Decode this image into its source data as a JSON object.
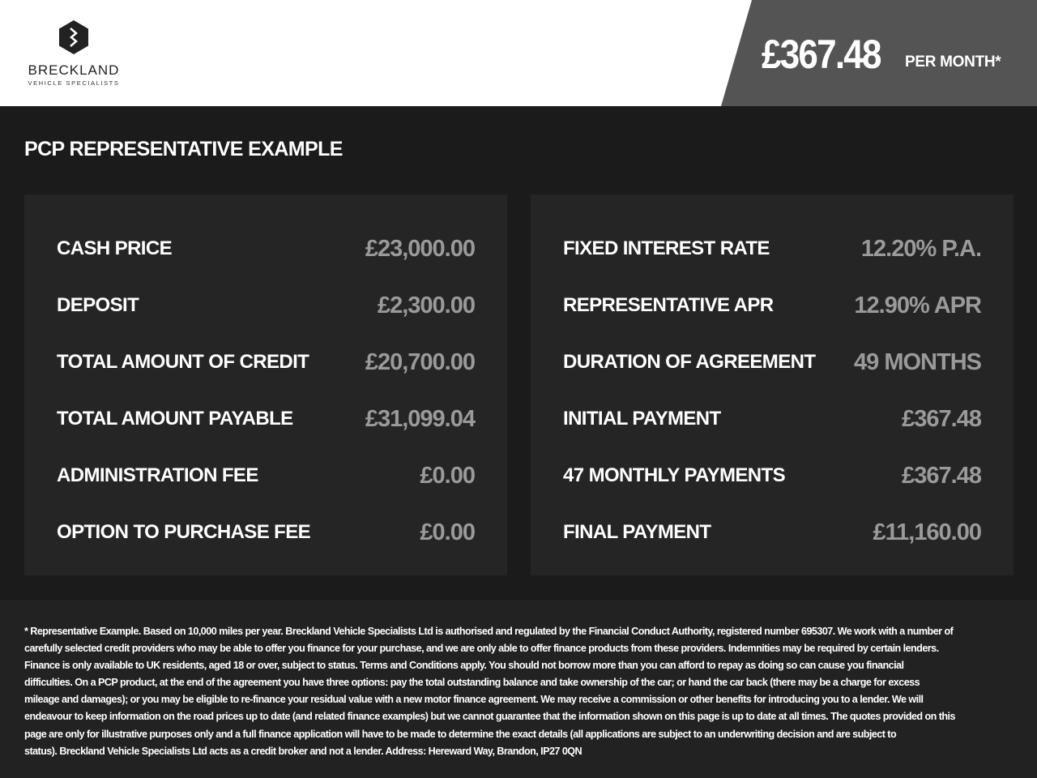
{
  "header": {
    "brand_name": "BRECKLAND",
    "brand_sub": "VEHICLE SPECIALISTS",
    "monthly_price": "£367.48",
    "per_month": "PER MONTH*"
  },
  "colors": {
    "header_band": "#545454",
    "panel": "#252525",
    "value_text": "#9a9a9a"
  },
  "section_title": "PCP REPRESENTATIVE EXAMPLE",
  "left_panel": [
    {
      "label": "CASH PRICE",
      "value": "£23,000.00"
    },
    {
      "label": "DEPOSIT",
      "value": "£2,300.00"
    },
    {
      "label": "TOTAL AMOUNT OF CREDIT",
      "value": "£20,700.00"
    },
    {
      "label": "TOTAL AMOUNT PAYABLE",
      "value": "£31,099.04"
    },
    {
      "label": "ADMINISTRATION FEE",
      "value": "£0.00"
    },
    {
      "label": "OPTION TO PURCHASE FEE",
      "value": "£0.00"
    }
  ],
  "right_panel": [
    {
      "label": "FIXED INTEREST RATE",
      "value": "12.20% P.A."
    },
    {
      "label": "REPRESENTATIVE APR",
      "value": "12.90% APR"
    },
    {
      "label": "DURATION OF AGREEMENT",
      "value": "49 MONTHS"
    },
    {
      "label": "INITIAL PAYMENT",
      "value": "£367.48"
    },
    {
      "label": "47 MONTHLY PAYMENTS",
      "value": "£367.48"
    },
    {
      "label": "FINAL PAYMENT",
      "value": "£11,160.00"
    }
  ],
  "disclaimer": [
    "* Representative Example. Based on 10,000 miles per year. Breckland Vehicle Specialists Ltd is authorised and regulated by the Financial Conduct Authority, registered number 695307. We work with a number of",
    "carefully selected credit providers who may be able to offer you finance for your purchase, and we are only able to offer finance products from these providers. Indemnities may be required by certain lenders.",
    "Finance is only available to UK residents, aged 18 or over, subject to status. Terms and Conditions apply. You should not borrow more than you can afford to repay as doing so can cause you financial",
    "difficulties. On a PCP product, at the end of the agreement you have three options: pay the total outstanding balance and take ownership of the car; or hand the car back (there may be a charge for excess",
    "mileage and damages); or you may be eligible to re-finance your residual value with a new motor finance agreement. We may receive a commission or other benefits for introducing you to a lender. We will",
    "endeavour to keep information on the road prices up to date (and related finance examples) but we cannot guarantee that the information shown on this page is up to date at all times. The quotes provided on this",
    "page are only for illustrative purposes only and a full finance application will have to be made to determine the exact details (all applications are subject to an underwriting decision and are subject to",
    "status). Breckland Vehicle Specialists Ltd acts as a credit broker and not a lender. Address: Hereward Way, Brandon, IP27 0QN"
  ]
}
